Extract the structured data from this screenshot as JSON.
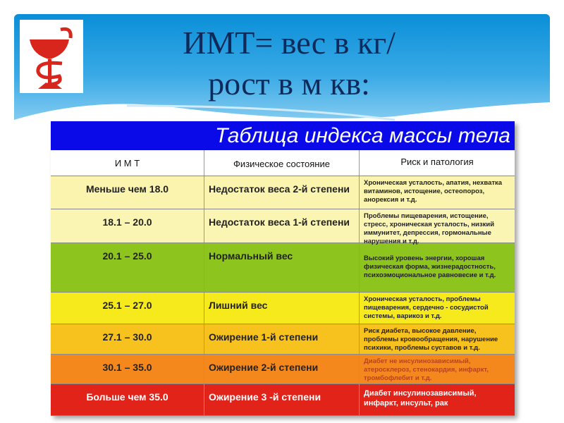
{
  "slide": {
    "title_line1": "ИМТ= вес в кг/",
    "title_line2": "рост в м кв:",
    "logo_icon": "bowl-of-hygieia-icon"
  },
  "table": {
    "title": "Таблица индекса массы тела",
    "headers": [
      "И М Т",
      "Физическое состояние",
      "Риск и патология"
    ],
    "rows": [
      {
        "bmi": "Меньше чем 18.0",
        "state": "Недостаток веса 2-й степени",
        "risk": "Хроническая усталость, апатия, нехватка витаминов, истощение, остеопороз, анорексия и т.д.",
        "color": "#faf4ae"
      },
      {
        "bmi": "18.1 – 20.0",
        "state": "Недостаток веса 1-й степени",
        "risk": "Проблемы пищеварения, истощение, стресс, хроническая усталость, низкий иммунитет, депрессия, гормональные нарушения и т.д.",
        "color": "#fbf5b4"
      },
      {
        "bmi": "20.1 – 25.0",
        "state": "Нормальный вес",
        "risk": "Высокий уровень энергии, хорошая физическая форма, жизнерадостность, психоэмоциональное равновесие и т.д.",
        "color": "#8ec41e"
      },
      {
        "bmi": "25.1 – 27.0",
        "state": "Лишний вес",
        "risk": "Хроническая усталость, проблемы пищеварения, сердечно - сосудистой системы, варикоз и т.д.",
        "color": "#f6ea1c"
      },
      {
        "bmi": "27.1 – 30.0",
        "state": "Ожирение 1-й степени",
        "risk": "Риск диабета, высокое давление, проблемы кровообращения, нарушение психики, проблемы суставов и т.д.",
        "color": "#f7c11e"
      },
      {
        "bmi": "30.1 – 35.0",
        "state": "Ожирение 2-й степени",
        "risk": "Диабет не инсулинозависимый, атеросклероз, стенокардия, инфаркт, тромбофлебит и т.д.",
        "color": "#f4881c"
      },
      {
        "bmi": "Больше чем 35.0",
        "state": "Ожирение 3 -й степени",
        "risk": "Диабет инсулинозависимый, инфаркт, инсульт, рак",
        "color": "#e2231a"
      }
    ]
  }
}
